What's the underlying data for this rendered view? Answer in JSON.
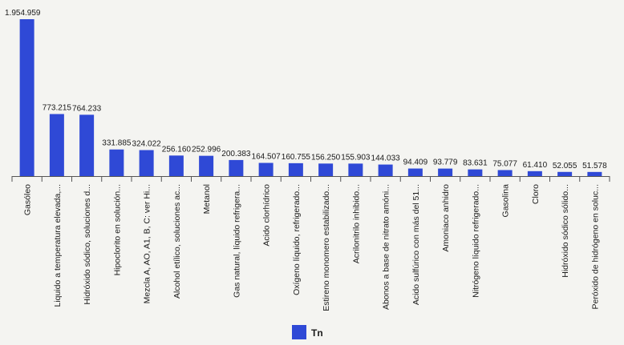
{
  "chart_data": {
    "type": "bar",
    "categories": [
      "Gasóleo",
      "Liquido a temperatura elevada,...",
      "Hidróxido sódico, soluciones d...",
      "Hipoclorito en solución...",
      "Mezcla A, AO, A1, B, C: ver Hi...",
      "Alcohol etílico, soluciones ac...",
      "Metanol",
      "Gas natural, líquido refrigera...",
      "Acido clorhídrico",
      "Oxígeno líquido, refrigerado...",
      "Estireno monomero estabilizado...",
      "Acrilonitrilo inhibido...",
      "Abonos a base de nitrato amóni...",
      "Acido sulfúrico con más del 51...",
      "Amoniaco anhidro",
      "Nitrógeno líquido refrigerado...",
      "Gasolina",
      "Cloro",
      "Hidróxido sódico sólido...",
      "Peróxido de hidrógeno en soluc..."
    ],
    "values": [
      1954959,
      773215,
      764233,
      331885,
      324022,
      256160,
      252996,
      200383,
      164507,
      160755,
      156250,
      155903,
      144033,
      94409,
      93779,
      83631,
      75077,
      61410,
      52055,
      51578
    ],
    "value_labels": [
      "1.954.959",
      "773.215",
      "764.233",
      "331.885",
      "324.022",
      "256.160",
      "252.996",
      "200.383",
      "164.507",
      "160.755",
      "156.250",
      "155.903",
      "144.033",
      "94.409",
      "93.779",
      "83.631",
      "75.077",
      "61.410",
      "52.055",
      "51.578"
    ],
    "series": [
      {
        "name": "Tn"
      }
    ],
    "bar_color": "#2f49d6",
    "ylim": [
      0,
      1954959
    ],
    "grid": false,
    "legend_position": "bottom-center"
  }
}
